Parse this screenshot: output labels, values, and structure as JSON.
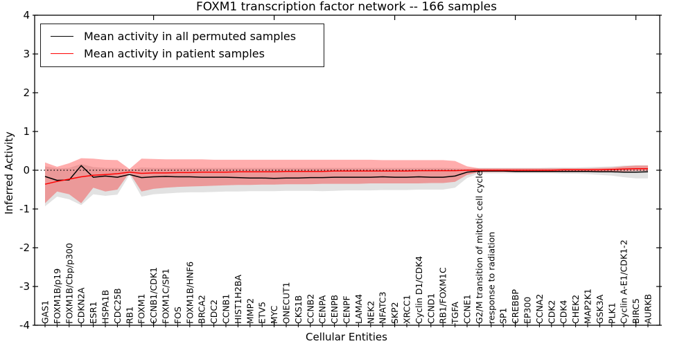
{
  "chart_data": {
    "type": "line",
    "title": "FOXM1 transcription factor network -- 166 samples",
    "xlabel": "Cellular Entities",
    "ylabel": "Inferred Activity",
    "ylim": [
      -4,
      4
    ],
    "yticks": [
      -4,
      -3,
      -2,
      -1,
      0,
      1,
      2,
      3,
      4
    ],
    "xtick_major_positions": [
      10,
      20,
      30,
      40,
      50
    ],
    "grid": false,
    "legend_position": "upper left",
    "zero_reference_line": {
      "y": 0,
      "style": "dotted",
      "color": "#000000"
    },
    "categories": [
      "GAS1",
      "FOXM1B/p19",
      "FOXM1B/Cbp/p300",
      "CDKN2A",
      "ESR1",
      "HSPA1B",
      "CDC25B",
      "RB1",
      "FOXM1",
      "CCNB1/CDK1",
      "FOXM1C/SP1",
      "FOS",
      "FOXM1B/HNF6",
      "BRCA2",
      "CDC2",
      "CCNB1",
      "HIST1H2BA",
      "MMP2",
      "ETV5",
      "MYC",
      "ONECUT1",
      "CKS1B",
      "CCNB2",
      "CENPA",
      "CENPB",
      "CENPF",
      "LAMA4",
      "NEK2",
      "NFATC3",
      "SKP2",
      "XRCC1",
      "Cyclin D1/CDK4",
      "CCND1",
      "RB1/FOXM1C",
      "TGFA",
      "CCNE1",
      "G2/M transition of mitotic cell cycle",
      "response to radiation",
      "SP1",
      "CREBBP",
      "EP300",
      "CCNA2",
      "CDK2",
      "CDK4",
      "CHEK2",
      "MAP2K1",
      "GSK3A",
      "PLK1",
      "Cyclin A-E1/CDK1-2",
      "BIRC5",
      "AURKB"
    ],
    "series": [
      {
        "name": "Mean activity in all permuted samples",
        "color": "#000000",
        "values": [
          -0.16,
          -0.26,
          -0.25,
          0.12,
          -0.18,
          -0.15,
          -0.18,
          -0.11,
          -0.19,
          -0.17,
          -0.16,
          -0.17,
          -0.17,
          -0.18,
          -0.18,
          -0.18,
          -0.19,
          -0.2,
          -0.2,
          -0.21,
          -0.2,
          -0.2,
          -0.19,
          -0.19,
          -0.18,
          -0.18,
          -0.18,
          -0.18,
          -0.17,
          -0.18,
          -0.18,
          -0.17,
          -0.18,
          -0.18,
          -0.15,
          -0.05,
          -0.02,
          -0.02,
          -0.02,
          -0.03,
          -0.03,
          -0.03,
          -0.03,
          -0.03,
          -0.03,
          -0.03,
          -0.04,
          -0.04,
          -0.05,
          -0.05,
          -0.04
        ]
      },
      {
        "name": "Mean activity in patient samples",
        "color": "#ff0000",
        "values": [
          -0.36,
          -0.29,
          -0.23,
          -0.17,
          -0.13,
          -0.11,
          -0.09,
          -0.05,
          -0.08,
          -0.07,
          -0.07,
          -0.06,
          -0.06,
          -0.05,
          -0.05,
          -0.05,
          -0.04,
          -0.04,
          -0.04,
          -0.04,
          -0.03,
          -0.03,
          -0.03,
          -0.03,
          -0.02,
          -0.02,
          -0.02,
          -0.02,
          -0.02,
          -0.02,
          -0.02,
          -0.01,
          -0.01,
          -0.01,
          -0.01,
          0,
          0,
          0,
          0,
          0,
          0,
          0,
          0,
          0.01,
          0.01,
          0.01,
          0.01,
          0.02,
          0.03,
          0.04,
          0.04
        ]
      }
    ],
    "bands": [
      {
        "name": "Permuted samples range",
        "color": "#e2e2e2",
        "opacity": 1.0,
        "upper": [
          0.1,
          0.05,
          0.06,
          0.16,
          0.08,
          0.06,
          0.06,
          0.02,
          0.07,
          0.06,
          0.06,
          0.06,
          0.06,
          0.06,
          0.06,
          0.06,
          0.06,
          0.06,
          0.06,
          0.06,
          0.06,
          0.06,
          0.06,
          0.06,
          0.06,
          0.06,
          0.06,
          0.06,
          0.06,
          0.06,
          0.06,
          0.06,
          0.06,
          0.06,
          0.05,
          0.04,
          0.06,
          0.06,
          0.06,
          0.06,
          0.06,
          0.06,
          0.07,
          0.07,
          0.07,
          0.08,
          0.09,
          0.1,
          0.12,
          0.13,
          0.13
        ],
        "lower": [
          -0.93,
          -0.68,
          -0.75,
          -0.9,
          -0.62,
          -0.66,
          -0.63,
          -0.12,
          -0.68,
          -0.62,
          -0.6,
          -0.58,
          -0.57,
          -0.57,
          -0.56,
          -0.55,
          -0.55,
          -0.54,
          -0.54,
          -0.54,
          -0.53,
          -0.53,
          -0.53,
          -0.54,
          -0.53,
          -0.52,
          -0.52,
          -0.52,
          -0.51,
          -0.51,
          -0.51,
          -0.5,
          -0.5,
          -0.5,
          -0.45,
          -0.2,
          -0.08,
          -0.08,
          -0.08,
          -0.08,
          -0.08,
          -0.08,
          -0.08,
          -0.09,
          -0.09,
          -0.1,
          -0.12,
          -0.14,
          -0.18,
          -0.21,
          -0.21
        ]
      },
      {
        "name": "Patient samples range",
        "color": "#ff0000",
        "opacity": 0.32,
        "upper": [
          0.2,
          0.09,
          0.18,
          0.31,
          0.3,
          0.27,
          0.26,
          0.03,
          0.3,
          0.29,
          0.28,
          0.28,
          0.28,
          0.28,
          0.27,
          0.27,
          0.27,
          0.27,
          0.27,
          0.27,
          0.27,
          0.27,
          0.27,
          0.27,
          0.27,
          0.27,
          0.27,
          0.27,
          0.26,
          0.26,
          0.26,
          0.26,
          0.26,
          0.26,
          0.24,
          0.1,
          0.05,
          0.05,
          0.05,
          0.05,
          0.05,
          0.05,
          0.05,
          0.05,
          0.05,
          0.05,
          0.06,
          0.07,
          0.1,
          0.12,
          0.12
        ],
        "lower": [
          -0.85,
          -0.55,
          -0.62,
          -0.85,
          -0.45,
          -0.55,
          -0.5,
          -0.06,
          -0.55,
          -0.48,
          -0.45,
          -0.43,
          -0.42,
          -0.41,
          -0.4,
          -0.39,
          -0.38,
          -0.38,
          -0.37,
          -0.37,
          -0.36,
          -0.36,
          -0.36,
          -0.35,
          -0.35,
          -0.35,
          -0.35,
          -0.34,
          -0.34,
          -0.34,
          -0.34,
          -0.34,
          -0.33,
          -0.33,
          -0.3,
          -0.12,
          -0.05,
          -0.05,
          -0.05,
          -0.05,
          -0.05,
          -0.05,
          -0.05,
          -0.05,
          -0.05,
          -0.05,
          -0.05,
          -0.04,
          -0.03,
          -0.02,
          -0.02
        ]
      }
    ]
  }
}
